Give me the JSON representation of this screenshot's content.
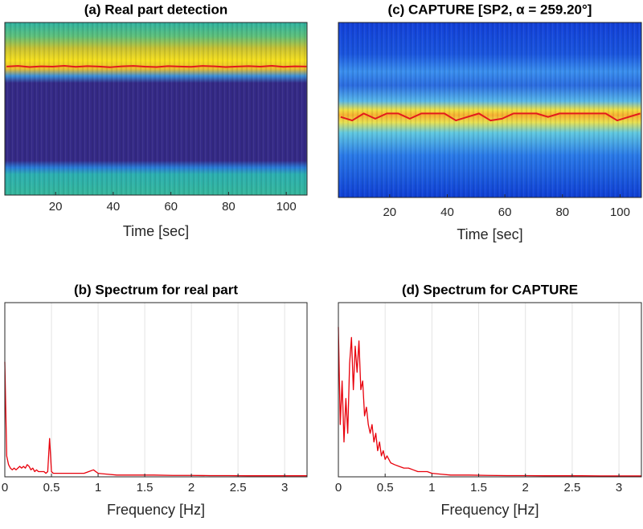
{
  "chart_data": [
    {
      "type": "heatmap",
      "title": "(a) Real part detection",
      "xlabel": "Time [sec]",
      "colormap": "parula",
      "line_color": "#e31a1c",
      "x": [
        3,
        7,
        11,
        15,
        19,
        23,
        27,
        31,
        35,
        39,
        43,
        47,
        51,
        55,
        59,
        63,
        67,
        71,
        75,
        79,
        83,
        87,
        91,
        95,
        99,
        103,
        107
      ],
      "values": [
        0.745,
        0.748,
        0.742,
        0.746,
        0.744,
        0.749,
        0.743,
        0.747,
        0.745,
        0.741,
        0.746,
        0.748,
        0.744,
        0.742,
        0.747,
        0.745,
        0.743,
        0.748,
        0.746,
        0.742,
        0.745,
        0.747,
        0.744,
        0.749,
        0.743,
        0.746,
        0.745
      ],
      "xlim": [
        2.4,
        107.2
      ],
      "ylim": [
        0,
        1
      ],
      "xticks": [
        20,
        40,
        60,
        80,
        100
      ]
    },
    {
      "type": "line",
      "title": "(b) Spectrum for real part",
      "xlabel": "Frequency [Hz]",
      "color": "#e8000b",
      "grid": true,
      "x": [
        0,
        0.02,
        0.04,
        0.06,
        0.08,
        0.1,
        0.12,
        0.14,
        0.16,
        0.18,
        0.2,
        0.22,
        0.24,
        0.26,
        0.28,
        0.3,
        0.32,
        0.34,
        0.36,
        0.38,
        0.4,
        0.42,
        0.44,
        0.46,
        0.48,
        0.5,
        0.52,
        0.56,
        0.6,
        0.65,
        0.7,
        0.75,
        0.8,
        0.85,
        0.9,
        0.95,
        1,
        1.1,
        1.2,
        1.4,
        1.6,
        1.8,
        2,
        2.2,
        2.4,
        2.6,
        2.8,
        3,
        3.24
      ],
      "values": [
        0.66,
        0.12,
        0.07,
        0.05,
        0.04,
        0.05,
        0.04,
        0.05,
        0.06,
        0.05,
        0.06,
        0.05,
        0.07,
        0.06,
        0.04,
        0.05,
        0.03,
        0.04,
        0.03,
        0.03,
        0.03,
        0.03,
        0.02,
        0.03,
        0.22,
        0.03,
        0.02,
        0.02,
        0.02,
        0.02,
        0.02,
        0.02,
        0.02,
        0.02,
        0.03,
        0.04,
        0.02,
        0.015,
        0.01,
        0.01,
        0.01,
        0.008,
        0.008,
        0.007,
        0.007,
        0.006,
        0.006,
        0.006,
        0.006
      ],
      "xlim": [
        0,
        3.24
      ],
      "ylim": [
        0,
        1
      ],
      "xticks": [
        0,
        0.5,
        1,
        1.5,
        2,
        2.5,
        3
      ]
    },
    {
      "type": "heatmap",
      "title": "(c) CAPTURE [SP2, α = 259.20°]",
      "xlabel": "Time [sec]",
      "colormap": "jet",
      "line_color": "#e31a1c",
      "x": [
        3,
        7,
        11,
        15,
        19,
        23,
        27,
        31,
        35,
        39,
        43,
        47,
        51,
        55,
        59,
        63,
        67,
        71,
        75,
        79,
        83,
        87,
        91,
        95,
        99,
        103,
        107
      ],
      "values": [
        0.46,
        0.44,
        0.48,
        0.45,
        0.48,
        0.48,
        0.45,
        0.48,
        0.48,
        0.48,
        0.44,
        0.46,
        0.48,
        0.44,
        0.45,
        0.48,
        0.48,
        0.48,
        0.46,
        0.48,
        0.48,
        0.48,
        0.48,
        0.48,
        0.44,
        0.46,
        0.48
      ],
      "xlim": [
        2.2,
        107.4
      ],
      "ylim": [
        0,
        1
      ],
      "xticks": [
        20,
        40,
        60,
        80,
        100
      ]
    },
    {
      "type": "line",
      "title": "(d) Spectrum for CAPTURE",
      "xlabel": "Frequency [Hz]",
      "color": "#e8000b",
      "grid": true,
      "x": [
        0,
        0.02,
        0.04,
        0.06,
        0.08,
        0.1,
        0.12,
        0.14,
        0.16,
        0.18,
        0.2,
        0.22,
        0.24,
        0.26,
        0.28,
        0.3,
        0.32,
        0.34,
        0.36,
        0.38,
        0.4,
        0.42,
        0.44,
        0.46,
        0.48,
        0.5,
        0.52,
        0.56,
        0.6,
        0.65,
        0.7,
        0.75,
        0.8,
        0.85,
        0.9,
        0.95,
        1,
        1.1,
        1.2,
        1.4,
        1.6,
        1.8,
        2,
        2.2,
        2.4,
        2.6,
        2.8,
        3,
        3.24
      ],
      "values": [
        0.86,
        0.3,
        0.55,
        0.2,
        0.45,
        0.25,
        0.65,
        0.8,
        0.5,
        0.75,
        0.6,
        0.78,
        0.5,
        0.55,
        0.35,
        0.4,
        0.3,
        0.25,
        0.3,
        0.2,
        0.25,
        0.15,
        0.2,
        0.12,
        0.15,
        0.1,
        0.12,
        0.08,
        0.07,
        0.06,
        0.05,
        0.05,
        0.04,
        0.03,
        0.03,
        0.03,
        0.02,
        0.015,
        0.01,
        0.01,
        0.008,
        0.007,
        0.007,
        0.006,
        0.006,
        0.006,
        0.005,
        0.005,
        0.005
      ],
      "xlim": [
        0,
        3.24
      ],
      "ylim": [
        0,
        1
      ],
      "xticks": [
        0,
        0.5,
        1,
        1.5,
        2,
        2.5,
        3
      ]
    }
  ]
}
